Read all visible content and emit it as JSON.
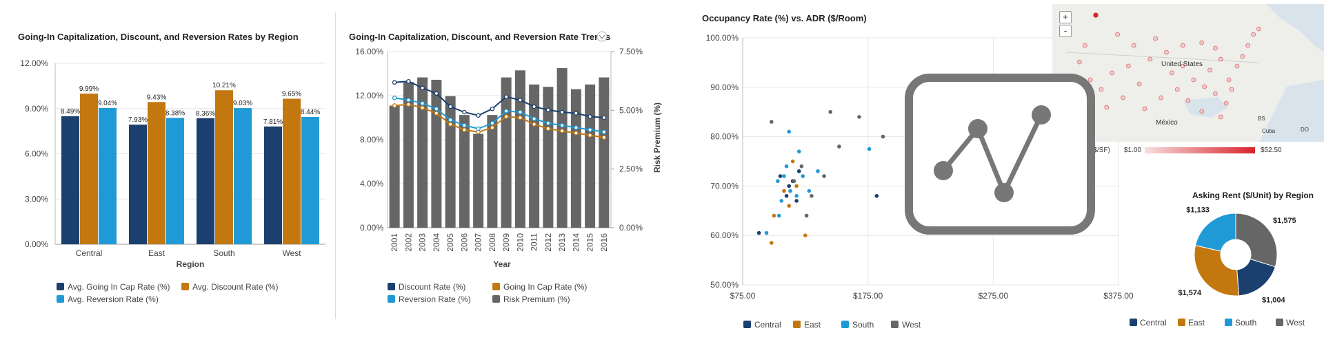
{
  "chart_data": [
    {
      "type": "bar",
      "title": "Going-In Capitalization, Discount, and Reversion Rates by Region",
      "xlabel": "Region",
      "ylabel": "",
      "ylim": [
        0,
        12
      ],
      "yticks": [
        "0.00%",
        "3.00%",
        "6.00%",
        "9.00%",
        "12.00%"
      ],
      "categories": [
        "Central",
        "East",
        "South",
        "West"
      ],
      "series": [
        {
          "name": "Avg. Going In Cap Rate (%)",
          "color": "#1b3f6e",
          "values": [
            8.49,
            7.93,
            8.36,
            7.81
          ],
          "labels": [
            "8.49%",
            "7.93%",
            "8.36%",
            "7.81%"
          ]
        },
        {
          "name": "Avg. Discount Rate (%)",
          "color": "#c2780f",
          "values": [
            9.99,
            9.43,
            10.21,
            9.65
          ],
          "labels": [
            "9.99%",
            "9.43%",
            "10.21%",
            "9.65%"
          ]
        },
        {
          "name": "Avg. Reversion Rate (%)",
          "color": "#1f9ad6",
          "values": [
            9.04,
            8.38,
            9.03,
            8.44
          ],
          "labels": [
            "9.04%",
            "8.38%",
            "9.03%",
            "8.44%"
          ]
        }
      ]
    },
    {
      "type": "bar",
      "title": "Going-In Capitalization, Discount, and Reversion Rate Trends",
      "xlabel": "Year",
      "ylabel_right": "Risk Premium (%)",
      "ylim": [
        0,
        16
      ],
      "ylim_right": [
        0,
        7.5
      ],
      "yticks": [
        "0.00%",
        "4.00%",
        "8.00%",
        "12.00%",
        "16.00%"
      ],
      "yticks_right": [
        "0.00%",
        "2.50%",
        "5.00%",
        "7.50%"
      ],
      "categories": [
        "2001",
        "2002",
        "2003",
        "2004",
        "2005",
        "2006",
        "2007",
        "2008",
        "2009",
        "2010",
        "2011",
        "2012",
        "2013",
        "2014",
        "2015",
        "2016"
      ],
      "bars": {
        "name": "Risk Premium (%)",
        "color": "#666666",
        "values": [
          5.2,
          6.2,
          6.4,
          6.3,
          5.6,
          4.8,
          4.0,
          4.8,
          6.4,
          6.7,
          6.1,
          6.0,
          6.8,
          5.9,
          6.1,
          6.4
        ]
      },
      "series": [
        {
          "name": "Discount Rate (%)",
          "color": "#1b3f6e",
          "values": [
            13.2,
            13.3,
            12.7,
            12.2,
            11.0,
            10.5,
            10.2,
            10.8,
            11.9,
            11.6,
            11.0,
            10.7,
            10.5,
            10.4,
            10.1,
            10.0
          ]
        },
        {
          "name": "Going In Cap Rate (%)",
          "color": "#c2780f",
          "values": [
            11.1,
            11.2,
            10.9,
            10.4,
            9.4,
            8.9,
            8.7,
            9.1,
            10.1,
            10.0,
            9.4,
            9.0,
            8.8,
            8.6,
            8.4,
            8.2
          ]
        },
        {
          "name": "Reversion Rate (%)",
          "color": "#1f9ad6",
          "values": [
            11.8,
            11.6,
            11.3,
            10.8,
            9.8,
            9.3,
            9.0,
            9.5,
            10.6,
            10.5,
            9.9,
            9.5,
            9.3,
            9.1,
            8.9,
            8.7
          ]
        }
      ]
    },
    {
      "type": "scatter",
      "title": "Occupancy Rate (%) vs. ADR ($/Room)",
      "xlim": [
        75,
        375
      ],
      "ylim": [
        50,
        100
      ],
      "xticks": [
        "$75.00",
        "$175.00",
        "$275.00",
        "$375.00"
      ],
      "yticks": [
        "50.00%",
        "60.00%",
        "70.00%",
        "80.00%",
        "90.00%",
        "100.00%"
      ],
      "series": [
        {
          "name": "Central",
          "color": "#1b3f6e",
          "points": [
            [
              88,
              60.5
            ],
            [
              110,
              68
            ],
            [
              112,
              70
            ],
            [
              115,
              71
            ],
            [
              118,
              67
            ],
            [
              105,
              72
            ],
            [
              120,
              73
            ],
            [
              182,
              68
            ]
          ]
        },
        {
          "name": "East",
          "color": "#c2780f",
          "points": [
            [
              100,
              64
            ],
            [
              98,
              58.5
            ],
            [
              115,
              75
            ],
            [
              118,
              70
            ],
            [
              125,
              60
            ],
            [
              108,
              69
            ],
            [
              112,
              66
            ]
          ]
        },
        {
          "name": "South",
          "color": "#1f9ad6",
          "points": [
            [
              94,
              60.5
            ],
            [
              104,
              64
            ],
            [
              108,
              72
            ],
            [
              110,
              74
            ],
            [
              120,
              77
            ],
            [
              123,
              72
            ],
            [
              135,
              73
            ],
            [
              113,
              69
            ],
            [
              118,
              68
            ],
            [
              103,
              71
            ],
            [
              112,
              81
            ],
            [
              176,
              77.5
            ],
            [
              128,
              69
            ],
            [
              106,
              67
            ]
          ]
        },
        {
          "name": "West",
          "color": "#666666",
          "points": [
            [
              98,
              83
            ],
            [
              145,
              85
            ],
            [
              168,
              84
            ],
            [
              187,
              80
            ],
            [
              152,
              78
            ],
            [
              140,
              72
            ],
            [
              126,
              64
            ],
            [
              122,
              74
            ],
            [
              116,
              71
            ],
            [
              130,
              68
            ]
          ]
        }
      ]
    },
    {
      "type": "pie",
      "title": "Asking Rent ($/Unit) by Region",
      "categories": [
        "Central",
        "East",
        "South",
        "West"
      ],
      "values": [
        1004,
        1574,
        1133,
        1575
      ],
      "labels": [
        "$1,004",
        "$1,574",
        "$1,133",
        "$1,575"
      ],
      "colors": [
        "#1b3f6e",
        "#c2780f",
        "#1f9ad6",
        "#666666"
      ]
    }
  ],
  "map": {
    "zoom_in": "+",
    "zoom_out": "-",
    "labels": {
      "us": "United States",
      "mx": "México",
      "cu": "Cuba",
      "bs": "BS",
      "do": "DO"
    },
    "legend_unit": "($/SF)",
    "legend_min": "$1.00",
    "legend_max": "$52.50",
    "points": [
      [
        0.16,
        0.08
      ],
      [
        0.12,
        0.3
      ],
      [
        0.1,
        0.42
      ],
      [
        0.14,
        0.55
      ],
      [
        0.18,
        0.62
      ],
      [
        0.22,
        0.5
      ],
      [
        0.28,
        0.45
      ],
      [
        0.36,
        0.4
      ],
      [
        0.42,
        0.35
      ],
      [
        0.48,
        0.3
      ],
      [
        0.55,
        0.28
      ],
      [
        0.6,
        0.32
      ],
      [
        0.62,
        0.4
      ],
      [
        0.58,
        0.48
      ],
      [
        0.52,
        0.55
      ],
      [
        0.46,
        0.62
      ],
      [
        0.4,
        0.68
      ],
      [
        0.5,
        0.7
      ],
      [
        0.55,
        0.78
      ],
      [
        0.6,
        0.65
      ],
      [
        0.65,
        0.55
      ],
      [
        0.68,
        0.45
      ],
      [
        0.7,
        0.38
      ],
      [
        0.72,
        0.3
      ],
      [
        0.74,
        0.22
      ],
      [
        0.76,
        0.18
      ],
      [
        0.66,
        0.62
      ],
      [
        0.64,
        0.72
      ],
      [
        0.62,
        0.82
      ],
      [
        0.44,
        0.5
      ],
      [
        0.32,
        0.58
      ],
      [
        0.26,
        0.68
      ],
      [
        0.2,
        0.75
      ],
      [
        0.34,
        0.76
      ],
      [
        0.3,
        0.3
      ],
      [
        0.24,
        0.22
      ],
      [
        0.38,
        0.25
      ],
      [
        0.56,
        0.6
      ],
      [
        0.48,
        0.45
      ]
    ]
  },
  "logo": {
    "name": "line-chart-logo"
  }
}
